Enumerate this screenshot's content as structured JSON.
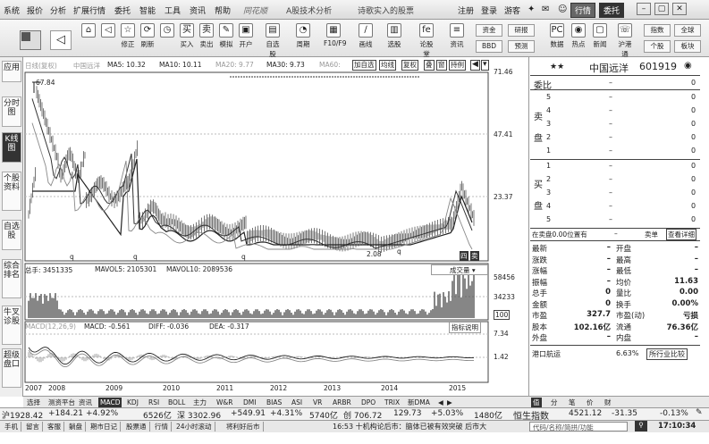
{
  "menubar": {
    "items": [
      "系统",
      "报价",
      "分析",
      "扩展行情",
      "委托",
      "智能",
      "工具",
      "资讯",
      "帮助"
    ],
    "brand": "同花顺",
    "center_text": "A股技术分析",
    "notice": "诗歌实入的股票",
    "register": "注册",
    "login": "登录",
    "guest": "游客",
    "quote_btn": "行情",
    "trade_btn": "委托"
  },
  "toolbar": {
    "buttons": [
      {
        "glyph": "⌂",
        "label": ""
      },
      {
        "glyph": "◁",
        "label": ""
      },
      {
        "glyph": "☆",
        "label": "修正"
      },
      {
        "glyph": "⟳",
        "label": "刷新"
      },
      {
        "glyph": "◷",
        "label": ""
      },
      {
        "glyph": "买",
        "label": "买入"
      },
      {
        "glyph": "卖",
        "label": "卖出"
      },
      {
        "glyph": "✎",
        "label": "模拟"
      },
      {
        "glyph": "▣",
        "label": "开户"
      },
      {
        "glyph": "▤",
        "label": "自选股"
      },
      {
        "glyph": "◔",
        "label": "周期"
      },
      {
        "glyph": "▦",
        "label": "F10/F9"
      },
      {
        "glyph": "∕",
        "label": "画线"
      },
      {
        "glyph": "▥",
        "label": "选股"
      },
      {
        "glyph": "fe",
        "label": "论股堂"
      },
      {
        "glyph": "≡",
        "label": "资讯"
      }
    ],
    "right_buttons": [
      {
        "label": "资金",
        "row": 0
      },
      {
        "label": "研报",
        "row": 0
      },
      {
        "label": "指数",
        "row": 0
      },
      {
        "label": "全球",
        "row": 0
      },
      {
        "label": "BBD",
        "row": 1
      },
      {
        "label": "预测",
        "row": 1
      },
      {
        "label": "个股",
        "row": 1
      },
      {
        "label": "板块",
        "row": 1
      }
    ],
    "mid_right": [
      {
        "glyph": "PC",
        "label": "数据"
      },
      {
        "glyph": "◉",
        "label": "热点"
      },
      {
        "glyph": "▢",
        "label": "新闻"
      },
      {
        "glyph": "☏",
        "label": "沪港通"
      }
    ]
  },
  "left_tabs": [
    "应用",
    "分时图",
    "K线图",
    "个股资料",
    "自选股",
    "综合排名",
    "牛叉诊股",
    "超级盘口"
  ],
  "chart": {
    "mode_label": "日线(复权)",
    "stock_name_small": "中国远洋",
    "ma_labels": [
      {
        "text": "MA5: 10.32",
        "color": "#222"
      },
      {
        "text": "MA10: 10.11",
        "color": "#222"
      },
      {
        "text": "MA20: 9.77",
        "color": "#999"
      },
      {
        "text": "MA30: 9.73",
        "color": "#222"
      },
      {
        "text": "MA60:",
        "color": "#999"
      }
    ],
    "controls": [
      "加自选",
      "均线",
      "复权",
      "叠",
      "窗",
      "持例"
    ],
    "price_max_label": "67.84",
    "price_min_label": "2.08",
    "y_ticks": [
      "71.46",
      "47.41",
      "23.37"
    ],
    "q_markers": [
      "q",
      "q",
      "q",
      "q"
    ],
    "small_markers": [
      "四",
      "卖"
    ],
    "vol_labels": [
      {
        "text": "总手: 3451335",
        "color": "#222"
      },
      {
        "text": "MAVOL5: 2105301",
        "color": "#222"
      },
      {
        "text": "MAVOL10: 2089536",
        "color": "#222"
      }
    ],
    "vol_dropdown": "成交量",
    "vol_ticks": [
      "58456",
      "34233",
      "100"
    ],
    "macd_labels": [
      {
        "text": "MACD(12,26,9)",
        "color": "#999"
      },
      {
        "text": "MACD: -0.561",
        "color": "#222"
      },
      {
        "text": "DIFF: -0.036",
        "color": "#222"
      },
      {
        "text": "DEA: -0.317",
        "color": "#222"
      }
    ],
    "macd_ticks": [
      "7.34",
      "1.42"
    ],
    "macd_help": "指标说明",
    "years": [
      "2007",
      "2008",
      "2009",
      "2010",
      "2011",
      "2012",
      "2013",
      "2014",
      "2015"
    ]
  },
  "right_panel": {
    "stock_name": "中国远洋",
    "stock_code": "601919",
    "ratio_label": "委比",
    "ratio_value": "–",
    "ratio_num": "0",
    "sell_label": "卖盘",
    "buy_label": "买盘",
    "sell_rows": [
      {
        "n": "5",
        "p": "–",
        "v": "0"
      },
      {
        "n": "4",
        "p": "–",
        "v": "0"
      },
      {
        "n": "3",
        "p": "–",
        "v": "0"
      },
      {
        "n": "2",
        "p": "–",
        "v": "0"
      },
      {
        "n": "1",
        "p": "–",
        "v": "0"
      }
    ],
    "buy_rows": [
      {
        "n": "1",
        "p": "–",
        "v": "0"
      },
      {
        "n": "2",
        "p": "–",
        "v": "0"
      },
      {
        "n": "3",
        "p": "–",
        "v": "0"
      },
      {
        "n": "4",
        "p": "–",
        "v": "0"
      },
      {
        "n": "5",
        "p": "–",
        "v": "0"
      }
    ],
    "order_status": "在卖盘0.00位置有",
    "order_dash": "–",
    "tab_sell": "卖单",
    "tab_view": "查看详细",
    "stats": [
      {
        "k1": "最新",
        "v1": "–",
        "k2": "开盘",
        "v2": "–"
      },
      {
        "k1": "涨跌",
        "v1": "–",
        "k2": "最高",
        "v2": "–"
      },
      {
        "k1": "涨幅",
        "v1": "–",
        "k2": "最低",
        "v2": "–"
      },
      {
        "k1": "振幅",
        "v1": "–",
        "k2": "均价",
        "v2": "11.63"
      },
      {
        "k1": "总手",
        "v1": "0",
        "k2": "量比",
        "v2": "0.00"
      },
      {
        "k1": "金额",
        "v1": "0",
        "k2": "换手",
        "v2": "0.00%"
      },
      {
        "k1": "市盈",
        "v1": "327.7",
        "k2": "市盈(动)",
        "v2": "亏损"
      },
      {
        "k1": "股本",
        "v1": "102.16亿",
        "k2": "流通",
        "v2": "76.36亿"
      },
      {
        "k1": "外盘",
        "v1": "–",
        "k2": "内盘",
        "v2": "–"
      }
    ],
    "bottom_label": "港口航运",
    "bottom_value": "6.63%",
    "bottom_link": "所行业比较",
    "tabs": [
      "值",
      "分",
      "笔",
      "价",
      "财"
    ]
  },
  "bottom_tabs": [
    "选择",
    "测资平台",
    "资讯",
    "MACD",
    "KDJ",
    "RSI",
    "BOLL",
    "主力",
    "W&R",
    "DMI",
    "BIAS",
    "ASI",
    "VR",
    "ARBR",
    "DPO",
    "TRIX",
    "新DMA"
  ],
  "bottom_tabs_active": "MACD",
  "index_bar": {
    "sh": "沪1928.42",
    "sh_chg": "+184.21",
    "sh_pct": "+4.92%",
    "sh_amt": "6526亿",
    "sz": "深 3302.96",
    "sz_chg": "+549.91",
    "sz_pct": "+4.31%",
    "sz_amt": "5740亿",
    "cy": "创 706.72",
    "cy_chg": "129.73",
    "cy_pct": "+5.03%",
    "cy_amt": "1480亿",
    "hs_label": "恒生指数",
    "hs_val": "4521.12",
    "hs_chg": "-31.35",
    "hs_pct": "-0.13%"
  },
  "status_bar": {
    "items": [
      "手机",
      "留言",
      "客服",
      "躺盘",
      "期市日记",
      "股票通",
      "行情",
      "24小时滚动",
      "将利好后市"
    ],
    "marquee": "16:53 十机构论后市：脑体已被有效突破 后市大",
    "search": "代码/名称/简拼/功能",
    "time": "17:10:34"
  },
  "colors": {
    "accent": "#333333",
    "ma_line": "#333333",
    "price_line": "#555555"
  }
}
